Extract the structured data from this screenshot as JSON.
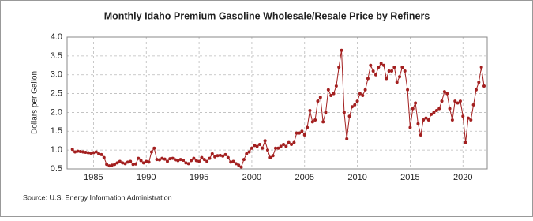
{
  "chart_data": {
    "type": "line",
    "title": "Monthly Idaho Premium Gasoline Wholesale/Resale Price by Refiners",
    "y_label": "Dollars per Gallon",
    "source": "Source: U.S. Energy Information Administration",
    "color": "#a31f1f",
    "x": [
      1983,
      1983.25,
      1983.5,
      1983.75,
      1984,
      1984.25,
      1984.5,
      1984.75,
      1985,
      1985.25,
      1985.5,
      1985.75,
      1986,
      1986.25,
      1986.5,
      1986.75,
      1987,
      1987.25,
      1987.5,
      1987.75,
      1988,
      1988.25,
      1988.5,
      1988.75,
      1989,
      1989.25,
      1989.5,
      1989.75,
      1990,
      1990.25,
      1990.5,
      1990.75,
      1991,
      1991.25,
      1991.5,
      1991.75,
      1992,
      1992.25,
      1992.5,
      1992.75,
      1993,
      1993.25,
      1993.5,
      1993.75,
      1994,
      1994.25,
      1994.5,
      1994.75,
      1995,
      1995.25,
      1995.5,
      1995.75,
      1996,
      1996.25,
      1996.5,
      1996.75,
      1997,
      1997.25,
      1997.5,
      1997.75,
      1998,
      1998.25,
      1998.5,
      1998.75,
      1999,
      1999.25,
      1999.5,
      1999.75,
      2000,
      2000.25,
      2000.5,
      2000.75,
      2001,
      2001.25,
      2001.5,
      2001.75,
      2002,
      2002.25,
      2002.5,
      2002.75,
      2003,
      2003.25,
      2003.5,
      2003.75,
      2004,
      2004.25,
      2004.5,
      2004.75,
      2005,
      2005.25,
      2005.5,
      2005.75,
      2006,
      2006.25,
      2006.5,
      2006.75,
      2007,
      2007.25,
      2007.5,
      2007.75,
      2008,
      2008.25,
      2008.5,
      2008.75,
      2009,
      2009.25,
      2009.5,
      2009.75,
      2010,
      2010.25,
      2010.5,
      2010.75,
      2011,
      2011.25,
      2011.5,
      2011.75,
      2012,
      2012.25,
      2012.5,
      2012.75,
      2013,
      2013.25,
      2013.5,
      2013.75,
      2014,
      2014.25,
      2014.5,
      2014.75,
      2015,
      2015.25,
      2015.5,
      2015.75,
      2016,
      2016.25,
      2016.5,
      2016.75,
      2017,
      2017.25,
      2017.5,
      2017.75,
      2018,
      2018.25,
      2018.5,
      2018.75,
      2019,
      2019.25,
      2019.5,
      2019.75,
      2020,
      2020.25,
      2020.5,
      2020.75,
      2021,
      2021.25,
      2021.5,
      2021.75,
      2022
    ],
    "values": [
      1.02,
      0.95,
      0.97,
      0.96,
      0.95,
      0.94,
      0.93,
      0.92,
      0.93,
      0.95,
      0.9,
      0.88,
      0.8,
      0.62,
      0.58,
      0.6,
      0.62,
      0.66,
      0.7,
      0.66,
      0.64,
      0.68,
      0.7,
      0.62,
      0.63,
      0.78,
      0.72,
      0.66,
      0.7,
      0.68,
      0.95,
      1.05,
      0.75,
      0.74,
      0.78,
      0.76,
      0.7,
      0.77,
      0.78,
      0.74,
      0.72,
      0.75,
      0.73,
      0.66,
      0.64,
      0.72,
      0.78,
      0.72,
      0.7,
      0.8,
      0.75,
      0.7,
      0.78,
      0.9,
      0.82,
      0.85,
      0.86,
      0.84,
      0.88,
      0.8,
      0.68,
      0.7,
      0.64,
      0.6,
      0.55,
      0.75,
      0.9,
      0.95,
      1.05,
      1.12,
      1.1,
      1.15,
      1.05,
      1.25,
      1.0,
      0.8,
      0.85,
      1.05,
      1.05,
      1.1,
      1.15,
      1.1,
      1.2,
      1.15,
      1.2,
      1.45,
      1.45,
      1.5,
      1.4,
      1.6,
      2.05,
      1.75,
      1.8,
      2.3,
      2.4,
      1.75,
      2.0,
      2.6,
      2.45,
      2.5,
      2.7,
      3.2,
      3.65,
      2.0,
      1.3,
      1.9,
      2.15,
      2.2,
      2.3,
      2.5,
      2.45,
      2.6,
      2.9,
      3.25,
      3.1,
      3.0,
      3.2,
      3.3,
      3.25,
      2.9,
      3.1,
      3.1,
      3.2,
      2.8,
      2.95,
      3.2,
      3.1,
      2.6,
      1.6,
      2.1,
      2.25,
      1.7,
      1.4,
      1.8,
      1.85,
      1.8,
      1.95,
      2.0,
      2.05,
      2.1,
      2.3,
      2.55,
      2.5,
      2.1,
      1.8,
      2.3,
      2.25,
      2.3,
      1.9,
      1.2,
      1.85,
      1.8,
      2.2,
      2.6,
      2.8,
      3.2,
      2.7
    ],
    "xlim": [
      1982.5,
      2022.3
    ],
    "xticks": [
      1985,
      1990,
      1995,
      2000,
      2005,
      2010,
      2015,
      2020
    ],
    "ylim": [
      0.5,
      4.0
    ],
    "yticks": [
      0.5,
      {
        "value": 1,
        "label": "1.0"
      },
      1.5,
      {
        "value": 2,
        "label": "2.0"
      },
      2.5,
      {
        "value": 3,
        "label": "3.0"
      },
      3.5,
      {
        "value": 4,
        "label": "4.0"
      }
    ],
    "grid": true
  }
}
